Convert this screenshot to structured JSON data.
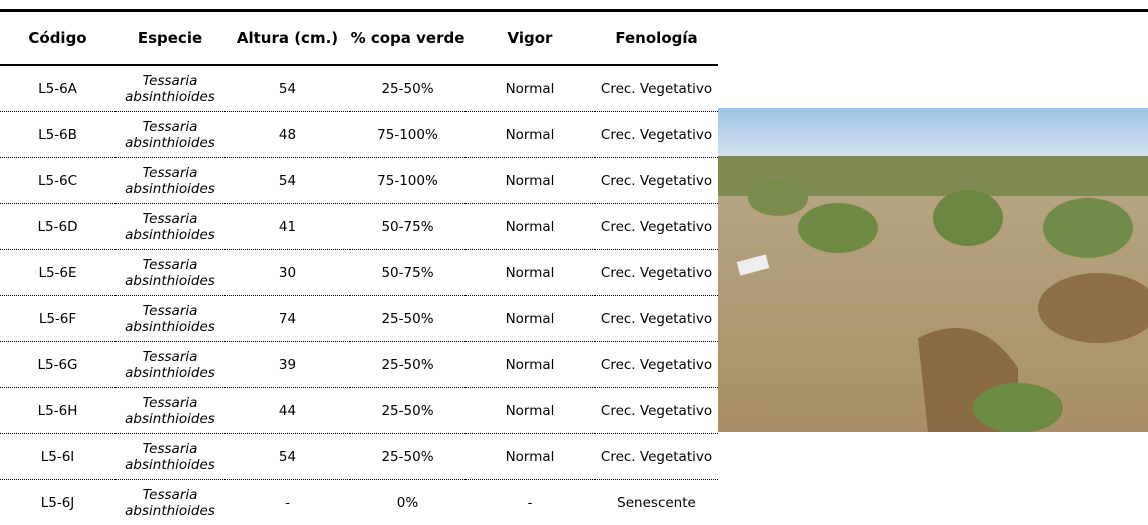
{
  "table": {
    "header": [
      "Código",
      "Especie",
      "Altura (cm.)",
      "% copa verde",
      "Vigor",
      "Fenología"
    ],
    "rows": [
      [
        "L5-6A",
        "Tessaria absinthioides",
        54,
        "25-50%",
        "Normal",
        "Crec. Vegetativo"
      ],
      [
        "L5-6B",
        "Tessaria absinthioides",
        48,
        "75-100%",
        "Normal",
        "Crec. Vegetativo"
      ],
      [
        "L5-6C",
        "Tessaria absinthioides",
        54,
        "75-100%",
        "Normal",
        "Crec. Vegetativo"
      ],
      [
        "L5-6D",
        "Tessaria absinthioides",
        41,
        "50-75%",
        "Normal",
        "Crec. Vegetativo"
      ],
      [
        "L5-6E",
        "Tessaria absinthioides",
        30,
        "50-75%",
        "Normal",
        "Crec. Vegetativo"
      ],
      [
        "L5-6F",
        "Tessaria absinthioides",
        74,
        "25-50%",
        "Normal",
        "Crec. Vegetativo"
      ],
      [
        "L5-6G",
        "Tessaria absinthioides",
        39,
        "25-50%",
        "Normal",
        "Crec. Vegetativo"
      ],
      [
        "L5-6H",
        "Tessaria absinthioides",
        44,
        "25-50%",
        "Normal",
        "Crec. Vegetativo"
      ],
      [
        "L5-6I",
        "Tessaria absinthioides",
        54,
        "25-50%",
        "Normal",
        "Crec. Vegetativo"
      ],
      [
        "L5-6J",
        "Tessaria absinthioides",
        "-",
        "0%",
        "-",
        "Senescente"
      ]
    ]
  }
}
